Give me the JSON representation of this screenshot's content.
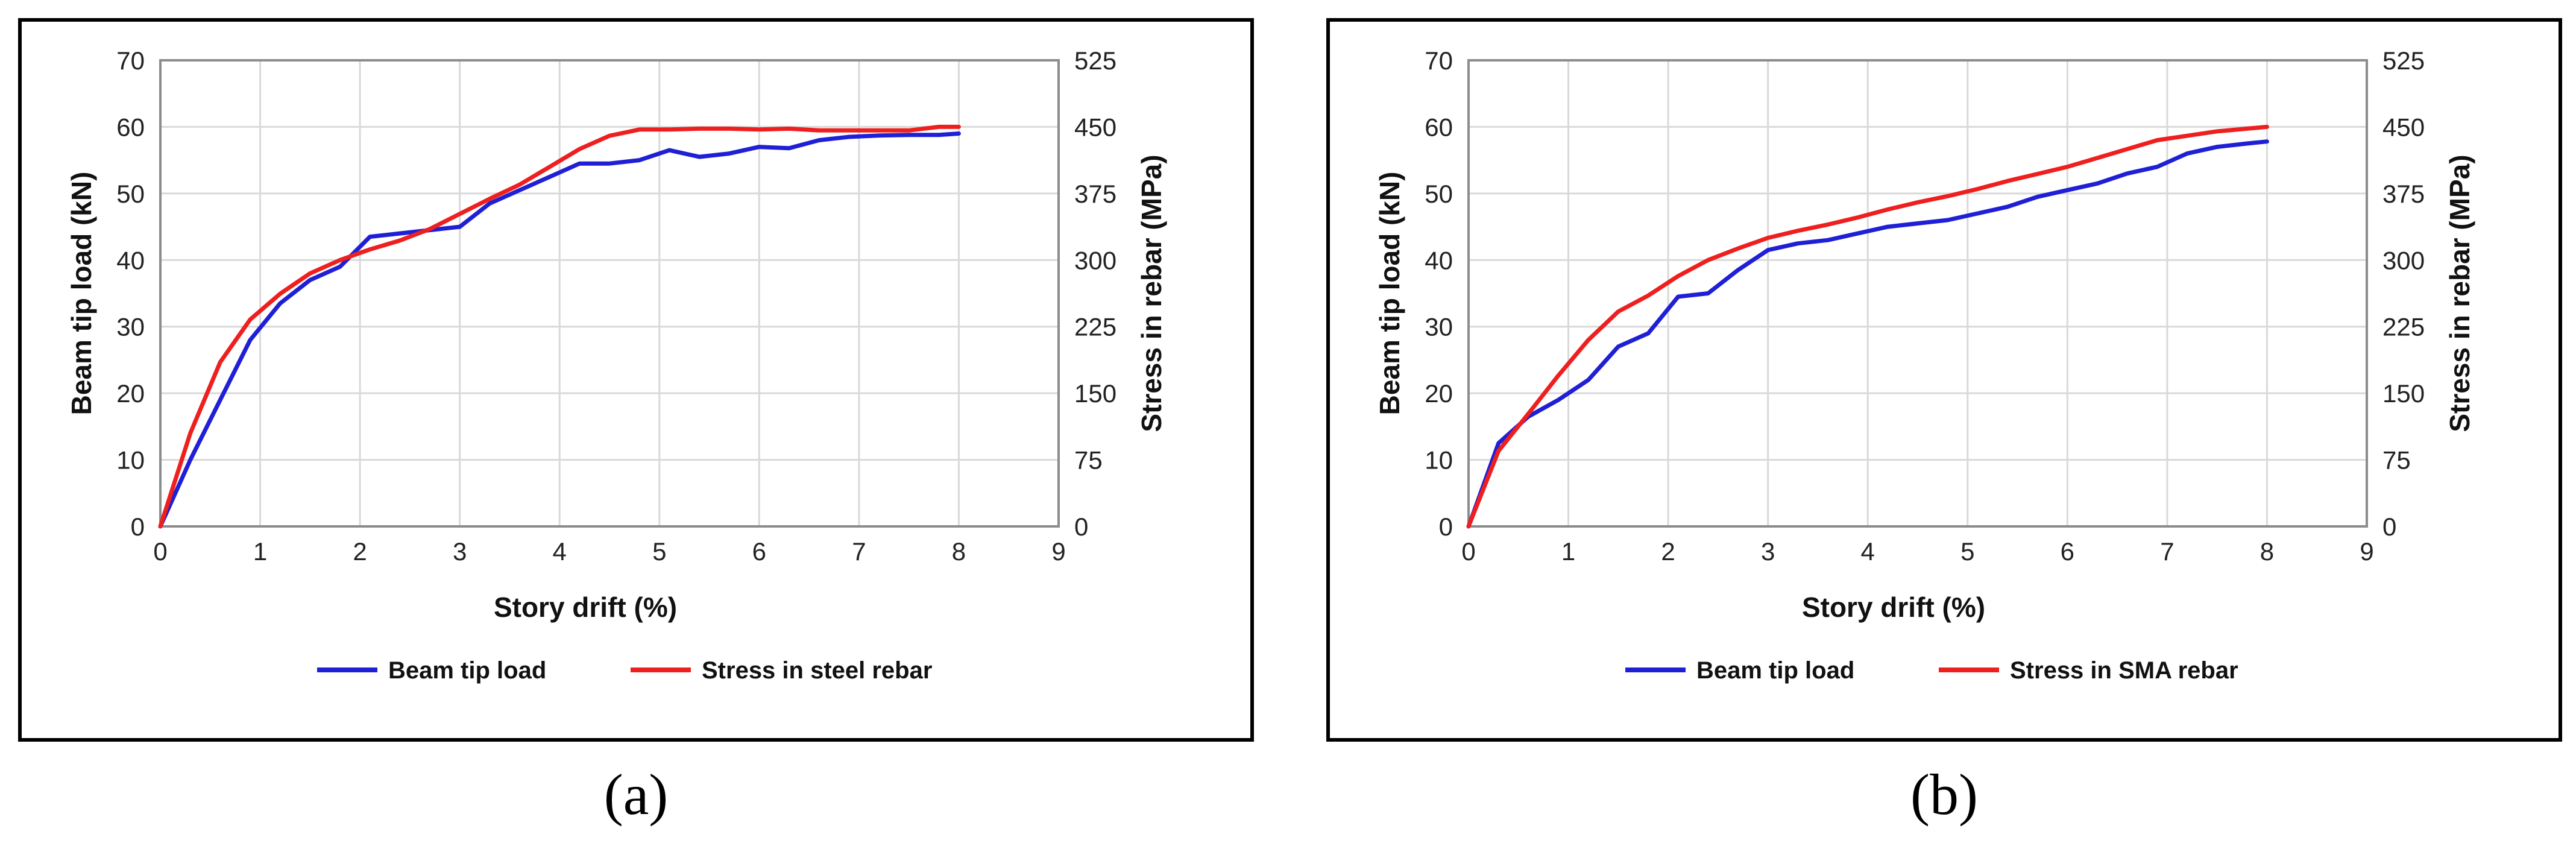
{
  "colors": {
    "load": "#1f1fd6",
    "stress": "#ee1f1f",
    "grid": "#d9d9d9",
    "frame": "#8c8c8c"
  },
  "chart_data": [
    {
      "type": "line",
      "caption": "(a)",
      "xlabel": "Story drift (%)",
      "ylabel": "Beam tip load (kN)",
      "y2label": "Stress in rebar (MPa)",
      "xlim": [
        0,
        9
      ],
      "ylim": [
        0,
        70
      ],
      "y2lim": [
        0,
        525
      ],
      "xticks": [
        "0",
        "1",
        "2",
        "3",
        "4",
        "5",
        "6",
        "7",
        "8",
        "9"
      ],
      "yticks": [
        "0",
        "10",
        "20",
        "30",
        "40",
        "50",
        "60",
        "70"
      ],
      "y2ticks": [
        "0",
        "75",
        "150",
        "225",
        "300",
        "375",
        "450",
        "525"
      ],
      "grid": true,
      "legend": "bottom",
      "series": [
        {
          "name": "Beam tip load",
          "axis": "left",
          "color": "#1f1fd6",
          "x": [
            0,
            0.3,
            0.6,
            0.9,
            1.2,
            1.5,
            1.8,
            2.1,
            2.4,
            2.7,
            3.0,
            3.3,
            3.6,
            3.9,
            4.2,
            4.5,
            4.8,
            5.1,
            5.4,
            5.7,
            6.0,
            6.3,
            6.6,
            6.9,
            7.2,
            7.5,
            7.8,
            8.0
          ],
          "y": [
            0,
            10,
            19,
            28,
            33.5,
            37,
            39,
            43.5,
            44,
            44.5,
            45,
            48.5,
            50.5,
            52.5,
            54.5,
            54.5,
            55,
            56.5,
            55.5,
            56,
            57,
            56.8,
            58,
            58.5,
            58.7,
            58.8,
            58.8,
            59
          ]
        },
        {
          "name": "Stress in steel rebar",
          "axis": "right",
          "color": "#ee1f1f",
          "x": [
            0,
            0.3,
            0.6,
            0.9,
            1.2,
            1.5,
            1.8,
            2.1,
            2.4,
            2.7,
            3.0,
            3.3,
            3.6,
            3.9,
            4.2,
            4.5,
            4.8,
            5.1,
            5.4,
            5.7,
            6.0,
            6.3,
            6.6,
            6.9,
            7.2,
            7.5,
            7.8,
            8.0
          ],
          "y": [
            0,
            105,
            185,
            233,
            262,
            285,
            300,
            312,
            322,
            335,
            352,
            369,
            385,
            405,
            425,
            440,
            447,
            447,
            448,
            448,
            447,
            448,
            446,
            446,
            446,
            446,
            450,
            450
          ]
        }
      ]
    },
    {
      "type": "line",
      "caption": "(b)",
      "xlabel": "Story drift (%)",
      "ylabel": "Beam tip load (kN)",
      "y2label": "Stress in rebar (MPa)",
      "xlim": [
        0,
        9
      ],
      "ylim": [
        0,
        70
      ],
      "y2lim": [
        0,
        525
      ],
      "xticks": [
        "0",
        "1",
        "2",
        "3",
        "4",
        "5",
        "6",
        "7",
        "8",
        "9"
      ],
      "yticks": [
        "0",
        "10",
        "20",
        "30",
        "40",
        "50",
        "60",
        "70"
      ],
      "y2ticks": [
        "0",
        "75",
        "150",
        "225",
        "300",
        "375",
        "450",
        "525"
      ],
      "grid": true,
      "legend": "bottom",
      "series": [
        {
          "name": "Beam tip load",
          "axis": "left",
          "color": "#1f1fd6",
          "x": [
            0,
            0.3,
            0.6,
            0.9,
            1.2,
            1.5,
            1.8,
            2.1,
            2.4,
            2.7,
            3.0,
            3.3,
            3.6,
            3.9,
            4.2,
            4.5,
            4.8,
            5.1,
            5.4,
            5.7,
            6.0,
            6.3,
            6.6,
            6.9,
            7.2,
            7.5,
            7.8,
            8.0
          ],
          "y": [
            0,
            12.5,
            16.5,
            19,
            22,
            27,
            29,
            34.5,
            35,
            38.5,
            41.5,
            42.5,
            43,
            44,
            45,
            45.5,
            46,
            47,
            48,
            49.5,
            50.5,
            51.5,
            53,
            54,
            56,
            57,
            57.5,
            57.8
          ]
        },
        {
          "name": "Stress in SMA rebar",
          "axis": "right",
          "color": "#ee1f1f",
          "x": [
            0,
            0.3,
            0.6,
            0.9,
            1.2,
            1.5,
            1.8,
            2.1,
            2.4,
            2.7,
            3.0,
            3.3,
            3.6,
            3.9,
            4.2,
            4.5,
            4.8,
            5.1,
            5.4,
            5.7,
            6.0,
            6.3,
            6.6,
            6.9,
            7.2,
            7.5,
            7.8,
            8.0
          ],
          "y": [
            0,
            85,
            127,
            170,
            210,
            242,
            260,
            282,
            300,
            313,
            325,
            333,
            340,
            348,
            357,
            365,
            372,
            380,
            389,
            397,
            405,
            415,
            425,
            435,
            440,
            445,
            448,
            450
          ]
        }
      ]
    }
  ]
}
